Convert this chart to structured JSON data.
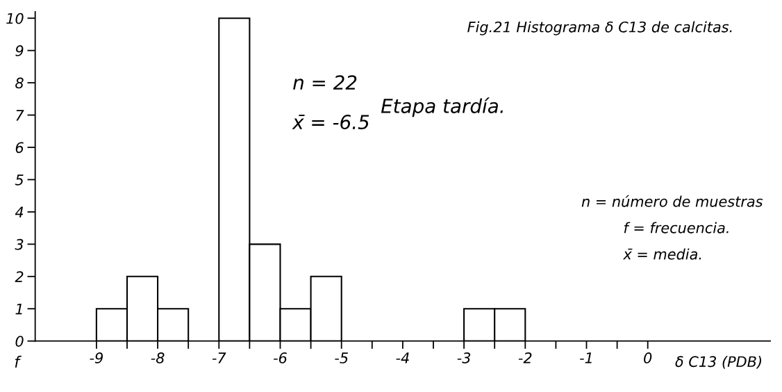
{
  "chart_data": {
    "type": "histogram",
    "title": "Fig.21 Histograma δ C13 de calcitas.",
    "xlabel": "δ C13 (PDB)",
    "ylabel": "f",
    "bins": [
      -9,
      -8.5,
      -8,
      -7.5,
      -7,
      -6.5,
      -6,
      -5.5,
      -5,
      -4.5,
      -4,
      -3.5,
      -3,
      -2.5,
      -2
    ],
    "values": [
      1,
      2,
      1,
      0,
      10,
      3,
      1,
      2,
      0,
      0,
      0,
      0,
      1,
      1
    ],
    "color": "#ffffff",
    "xlim": [
      -10,
      2
    ],
    "ylim": [
      0,
      10.2
    ],
    "xticks": [
      -9,
      {
        "value": -8.5,
        "label": null
      },
      -8,
      {
        "value": -7.5,
        "label": null
      },
      -7,
      {
        "value": -6.5,
        "label": null
      },
      -6,
      {
        "value": -5.5,
        "label": null
      },
      -5,
      {
        "value": -4.5,
        "label": null
      },
      -4,
      {
        "value": -3.5,
        "label": null
      },
      -3,
      {
        "value": -2.5,
        "label": null
      },
      -2,
      {
        "value": -1.5,
        "label": null
      },
      -1,
      {
        "value": -0.5,
        "label": null
      },
      0
    ],
    "yticks": [
      0,
      1,
      2,
      3,
      4,
      5,
      6,
      7,
      8,
      9,
      10
    ],
    "grid": false,
    "legend": false,
    "annotations": [
      "n = 22",
      "x̄ = -6.5",
      "Etapa tardía.",
      "n = número de muestras",
      "f = frecuencia.",
      "x̄ = media."
    ]
  }
}
